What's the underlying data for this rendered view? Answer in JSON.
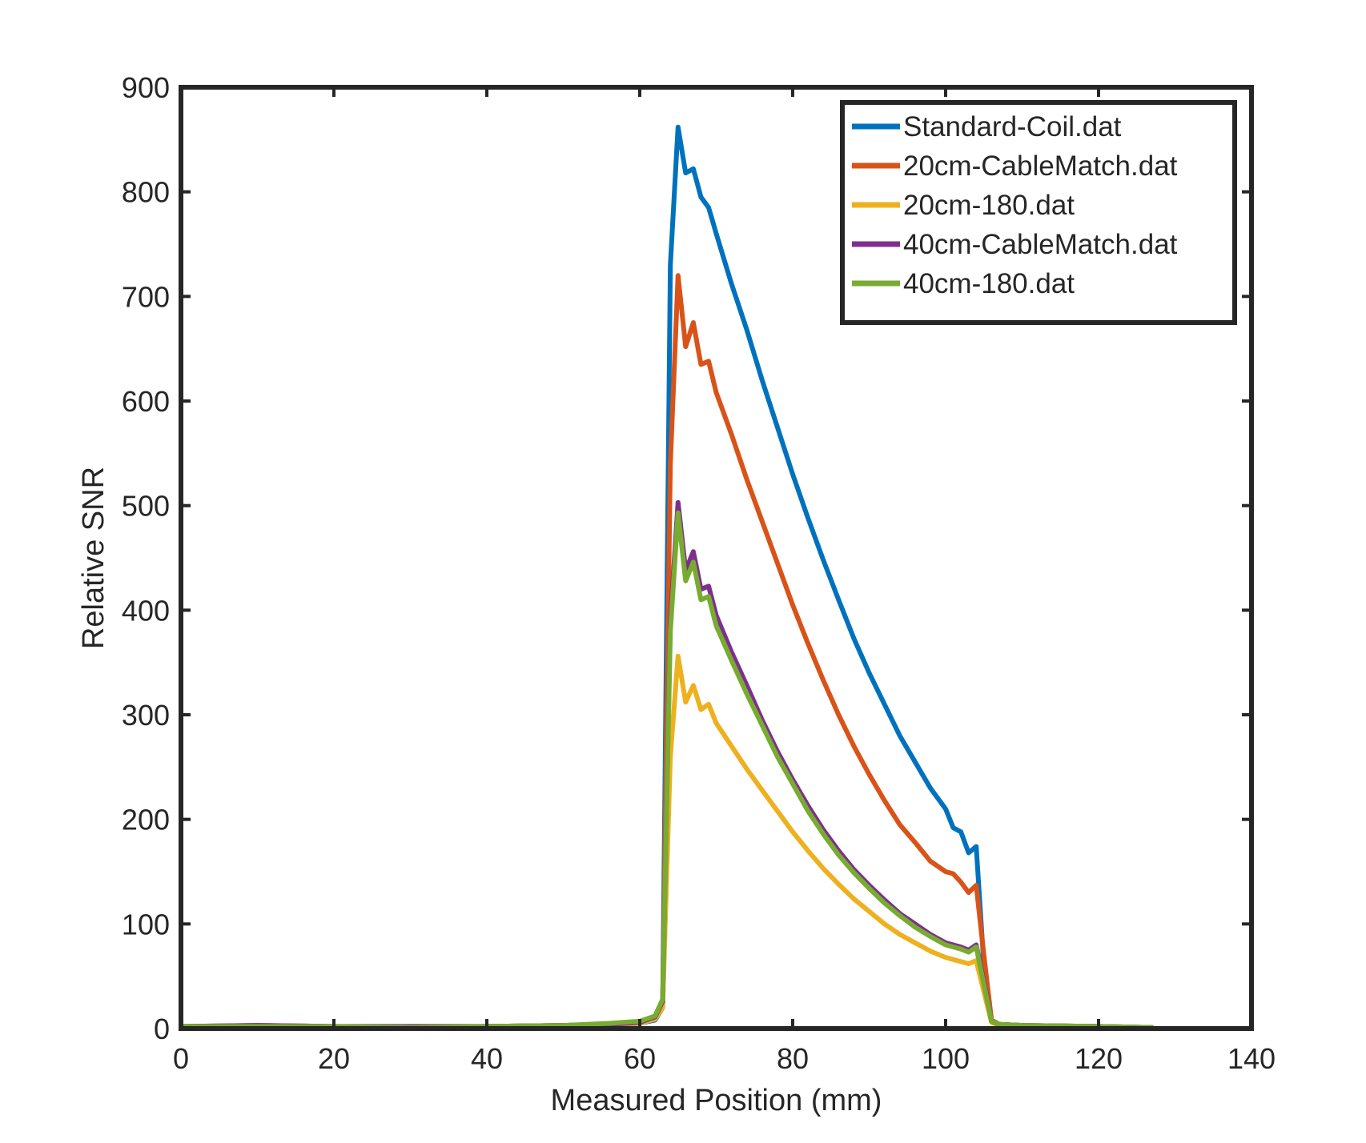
{
  "chart_data": {
    "type": "line",
    "title": "",
    "xlabel": "Measured Position (mm)",
    "ylabel": "Relative SNR",
    "xlim": [
      0,
      140
    ],
    "ylim": [
      0,
      900
    ],
    "xticks": [
      0,
      20,
      40,
      60,
      80,
      100,
      120,
      140
    ],
    "yticks": [
      0,
      100,
      200,
      300,
      400,
      500,
      600,
      700,
      800,
      900
    ],
    "xtick_labels": [
      "0",
      "20",
      "40",
      "60",
      "80",
      "100",
      "120",
      "140"
    ],
    "ytick_labels": [
      "0",
      "100",
      "200",
      "300",
      "400",
      "500",
      "600",
      "700",
      "800",
      "900"
    ],
    "grid": false,
    "box": true,
    "legend_position": "top-right",
    "x": [
      0,
      10,
      20,
      30,
      40,
      50,
      56,
      60,
      62,
      63,
      64,
      65,
      66,
      67,
      68,
      69,
      70,
      72,
      74,
      76,
      78,
      80,
      82,
      84,
      86,
      88,
      90,
      92,
      94,
      96,
      98,
      100,
      101,
      102,
      103,
      104,
      105,
      106,
      107,
      110,
      120,
      127
    ],
    "series": [
      {
        "name": "Standard-Coil.dat",
        "color": "#0072BD",
        "values": [
          1,
          2,
          1,
          1,
          2,
          3,
          4,
          5,
          8,
          20,
          730,
          862,
          818,
          822,
          795,
          785,
          760,
          712,
          668,
          620,
          575,
          530,
          488,
          448,
          410,
          373,
          340,
          310,
          280,
          255,
          230,
          210,
          192,
          188,
          168,
          174,
          60,
          8,
          4,
          3,
          2,
          1
        ]
      },
      {
        "name": "20cm-CableMatch.dat",
        "color": "#D95319",
        "values": [
          2,
          3,
          2,
          1,
          2,
          3,
          4,
          6,
          10,
          22,
          540,
          720,
          652,
          675,
          635,
          638,
          608,
          568,
          525,
          485,
          445,
          405,
          368,
          333,
          300,
          270,
          243,
          218,
          195,
          178,
          160,
          150,
          148,
          140,
          130,
          137,
          70,
          8,
          4,
          3,
          2,
          1
        ]
      },
      {
        "name": "20cm-180.dat",
        "color": "#EDB120",
        "values": [
          2,
          2,
          1,
          2,
          2,
          3,
          4,
          5,
          9,
          20,
          260,
          356,
          312,
          328,
          305,
          310,
          292,
          270,
          248,
          228,
          208,
          188,
          170,
          153,
          138,
          124,
          112,
          100,
          90,
          82,
          74,
          68,
          66,
          64,
          62,
          65,
          35,
          6,
          3,
          2,
          1,
          1
        ]
      },
      {
        "name": "40cm-CableMatch.dat",
        "color": "#7E2F8E",
        "values": [
          2,
          3,
          2,
          2,
          2,
          3,
          4,
          6,
          11,
          26,
          390,
          503,
          438,
          456,
          420,
          423,
          395,
          360,
          328,
          295,
          265,
          238,
          213,
          190,
          170,
          152,
          137,
          123,
          110,
          100,
          90,
          82,
          80,
          78,
          75,
          80,
          45,
          7,
          4,
          3,
          2,
          1
        ]
      },
      {
        "name": "40cm-180.dat",
        "color": "#77AC30",
        "values": [
          2,
          2,
          2,
          1,
          2,
          3,
          5,
          7,
          12,
          28,
          380,
          493,
          428,
          446,
          410,
          413,
          385,
          352,
          320,
          290,
          260,
          234,
          208,
          186,
          166,
          149,
          134,
          120,
          108,
          97,
          88,
          80,
          78,
          76,
          73,
          78,
          42,
          7,
          4,
          3,
          2,
          1
        ]
      }
    ]
  }
}
